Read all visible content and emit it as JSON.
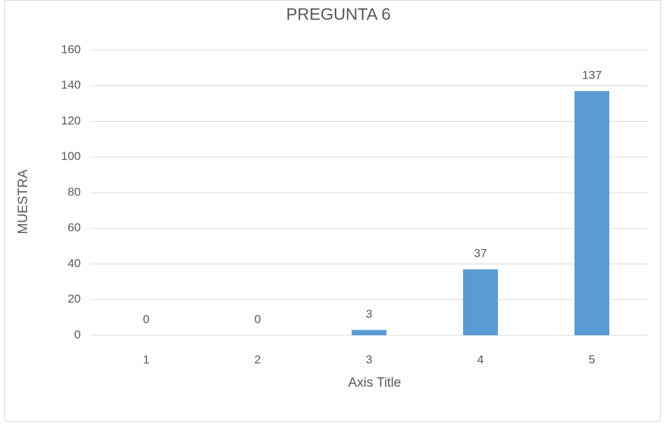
{
  "chart_data": {
    "type": "bar",
    "title": "PREGUNTA 6",
    "y_label": "MUESTRA",
    "x_label": "Axis Title",
    "categories": [
      "1",
      "2",
      "3",
      "4",
      "5"
    ],
    "values": [
      0,
      0,
      3,
      37,
      137
    ],
    "color": "#5b9bd5",
    "ylim": [
      0,
      160
    ],
    "yticks": [
      0,
      20,
      40,
      60,
      80,
      100,
      120,
      140,
      160
    ],
    "grid": true
  }
}
